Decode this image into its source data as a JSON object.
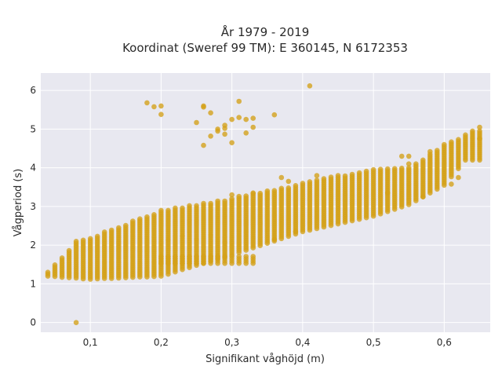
{
  "chart_data": {
    "type": "scatter",
    "title_line1": "År 1979 - 2019",
    "title_line2": "Koordinat (Sweref 99 TM): E 360145, N 6172353",
    "xlabel": "Signifikant våghöjd (m)",
    "ylabel": "Vågperiod (s)",
    "xlim": [
      0.03,
      0.665
    ],
    "ylim": [
      -0.25,
      6.45
    ],
    "x_ticks": [
      0.1,
      0.2,
      0.3,
      0.4,
      0.5,
      0.6
    ],
    "x_tick_labels": [
      "0,1",
      "0,2",
      "0,3",
      "0,4",
      "0,5",
      "0,6"
    ],
    "y_ticks": [
      0,
      1,
      2,
      3,
      4,
      5,
      6
    ],
    "y_tick_labels": [
      "0",
      "1",
      "2",
      "3",
      "4",
      "5",
      "6"
    ],
    "grid": true,
    "legend": "none",
    "marker_color": "#D4A017",
    "background_color": "#E8E8F0",
    "band_min_period": [
      [
        0.04,
        1.2
      ],
      [
        0.1,
        1.12
      ],
      [
        0.2,
        1.2
      ],
      [
        0.3,
        1.75
      ],
      [
        0.4,
        2.35
      ],
      [
        0.5,
        2.75
      ],
      [
        0.55,
        3.05
      ],
      [
        0.6,
        3.55
      ],
      [
        0.63,
        4.2
      ]
    ],
    "band_max_period": [
      [
        0.04,
        1.3
      ],
      [
        0.08,
        2.1
      ],
      [
        0.1,
        2.2
      ],
      [
        0.2,
        2.9
      ],
      [
        0.25,
        3.05
      ],
      [
        0.35,
        3.4
      ],
      [
        0.45,
        3.8
      ],
      [
        0.5,
        3.95
      ],
      [
        0.55,
        4.0
      ],
      [
        0.6,
        4.6
      ],
      [
        0.64,
        4.95
      ]
    ],
    "lower_branch": {
      "x_range": [
        0.2,
        0.33
      ],
      "y_center": 1.62,
      "y_spread": 0.18
    },
    "scatter_points": [
      [
        0.08,
        0.0
      ],
      [
        0.18,
        5.68
      ],
      [
        0.19,
        5.58
      ],
      [
        0.2,
        5.6
      ],
      [
        0.2,
        5.38
      ],
      [
        0.25,
        5.17
      ],
      [
        0.26,
        5.6
      ],
      [
        0.26,
        5.57
      ],
      [
        0.27,
        5.42
      ],
      [
        0.26,
        4.58
      ],
      [
        0.27,
        4.82
      ],
      [
        0.28,
        4.95
      ],
      [
        0.28,
        5.0
      ],
      [
        0.29,
        5.1
      ],
      [
        0.29,
        5.02
      ],
      [
        0.29,
        4.87
      ],
      [
        0.3,
        5.25
      ],
      [
        0.3,
        4.65
      ],
      [
        0.31,
        5.72
      ],
      [
        0.31,
        5.3
      ],
      [
        0.32,
        5.25
      ],
      [
        0.32,
        4.9
      ],
      [
        0.33,
        5.28
      ],
      [
        0.33,
        5.05
      ],
      [
        0.36,
        5.37
      ],
      [
        0.41,
        6.12
      ],
      [
        0.3,
        3.3
      ],
      [
        0.33,
        3.35
      ],
      [
        0.37,
        3.75
      ],
      [
        0.38,
        3.65
      ],
      [
        0.42,
        3.8
      ],
      [
        0.36,
        2.15
      ],
      [
        0.39,
        2.35
      ],
      [
        0.54,
        4.3
      ],
      [
        0.55,
        4.3
      ],
      [
        0.55,
        4.1
      ],
      [
        0.58,
        4.42
      ],
      [
        0.65,
        5.05
      ],
      [
        0.65,
        4.75
      ],
      [
        0.62,
        3.75
      ],
      [
        0.61,
        3.58
      ],
      [
        0.52,
        3.35
      ],
      [
        0.57,
        3.25
      ]
    ]
  }
}
